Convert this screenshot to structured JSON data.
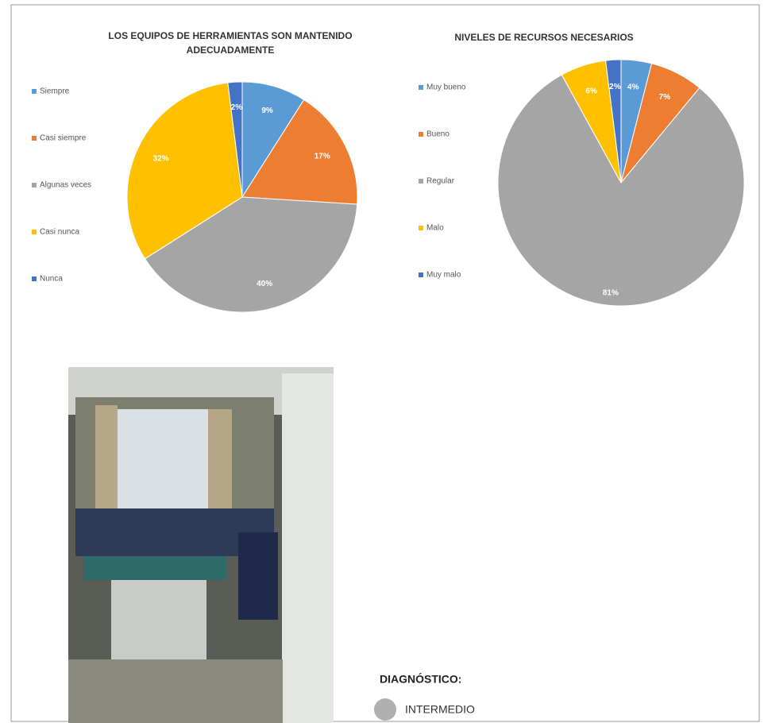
{
  "chart_data": [
    {
      "type": "pie",
      "title": "LOS EQUIPOS  DE HERRAMIENTAS  SON MANTENIDO ADECUADAMENTE",
      "categories": [
        "Siempre",
        "Casi siempre",
        "Algunas veces",
        "Casi nunca",
        "Nunca"
      ],
      "values": [
        9,
        17,
        40,
        32,
        2
      ],
      "value_labels": [
        "9%",
        "17%",
        "40%",
        "32%",
        "2%"
      ],
      "colors": [
        "#5b9bd5",
        "#ed7d31",
        "#a5a5a5",
        "#ffc000",
        "#4472c4"
      ]
    },
    {
      "type": "pie",
      "title": "NIVELES DE RECURSOS NECESARIOS",
      "categories": [
        "Muy bueno",
        "Bueno",
        "Regular",
        "Malo",
        "Muy malo"
      ],
      "values": [
        4,
        7,
        81,
        6,
        2
      ],
      "value_labels": [
        "4%",
        "7%",
        "81%",
        "6%",
        "2%"
      ],
      "colors": [
        "#5b9bd5",
        "#ed7d31",
        "#a5a5a5",
        "#ffc000",
        "#4472c4"
      ]
    }
  ],
  "diagnosis": {
    "label": "DIAGNÓSTICO:",
    "level": "INTERMEDIO"
  }
}
